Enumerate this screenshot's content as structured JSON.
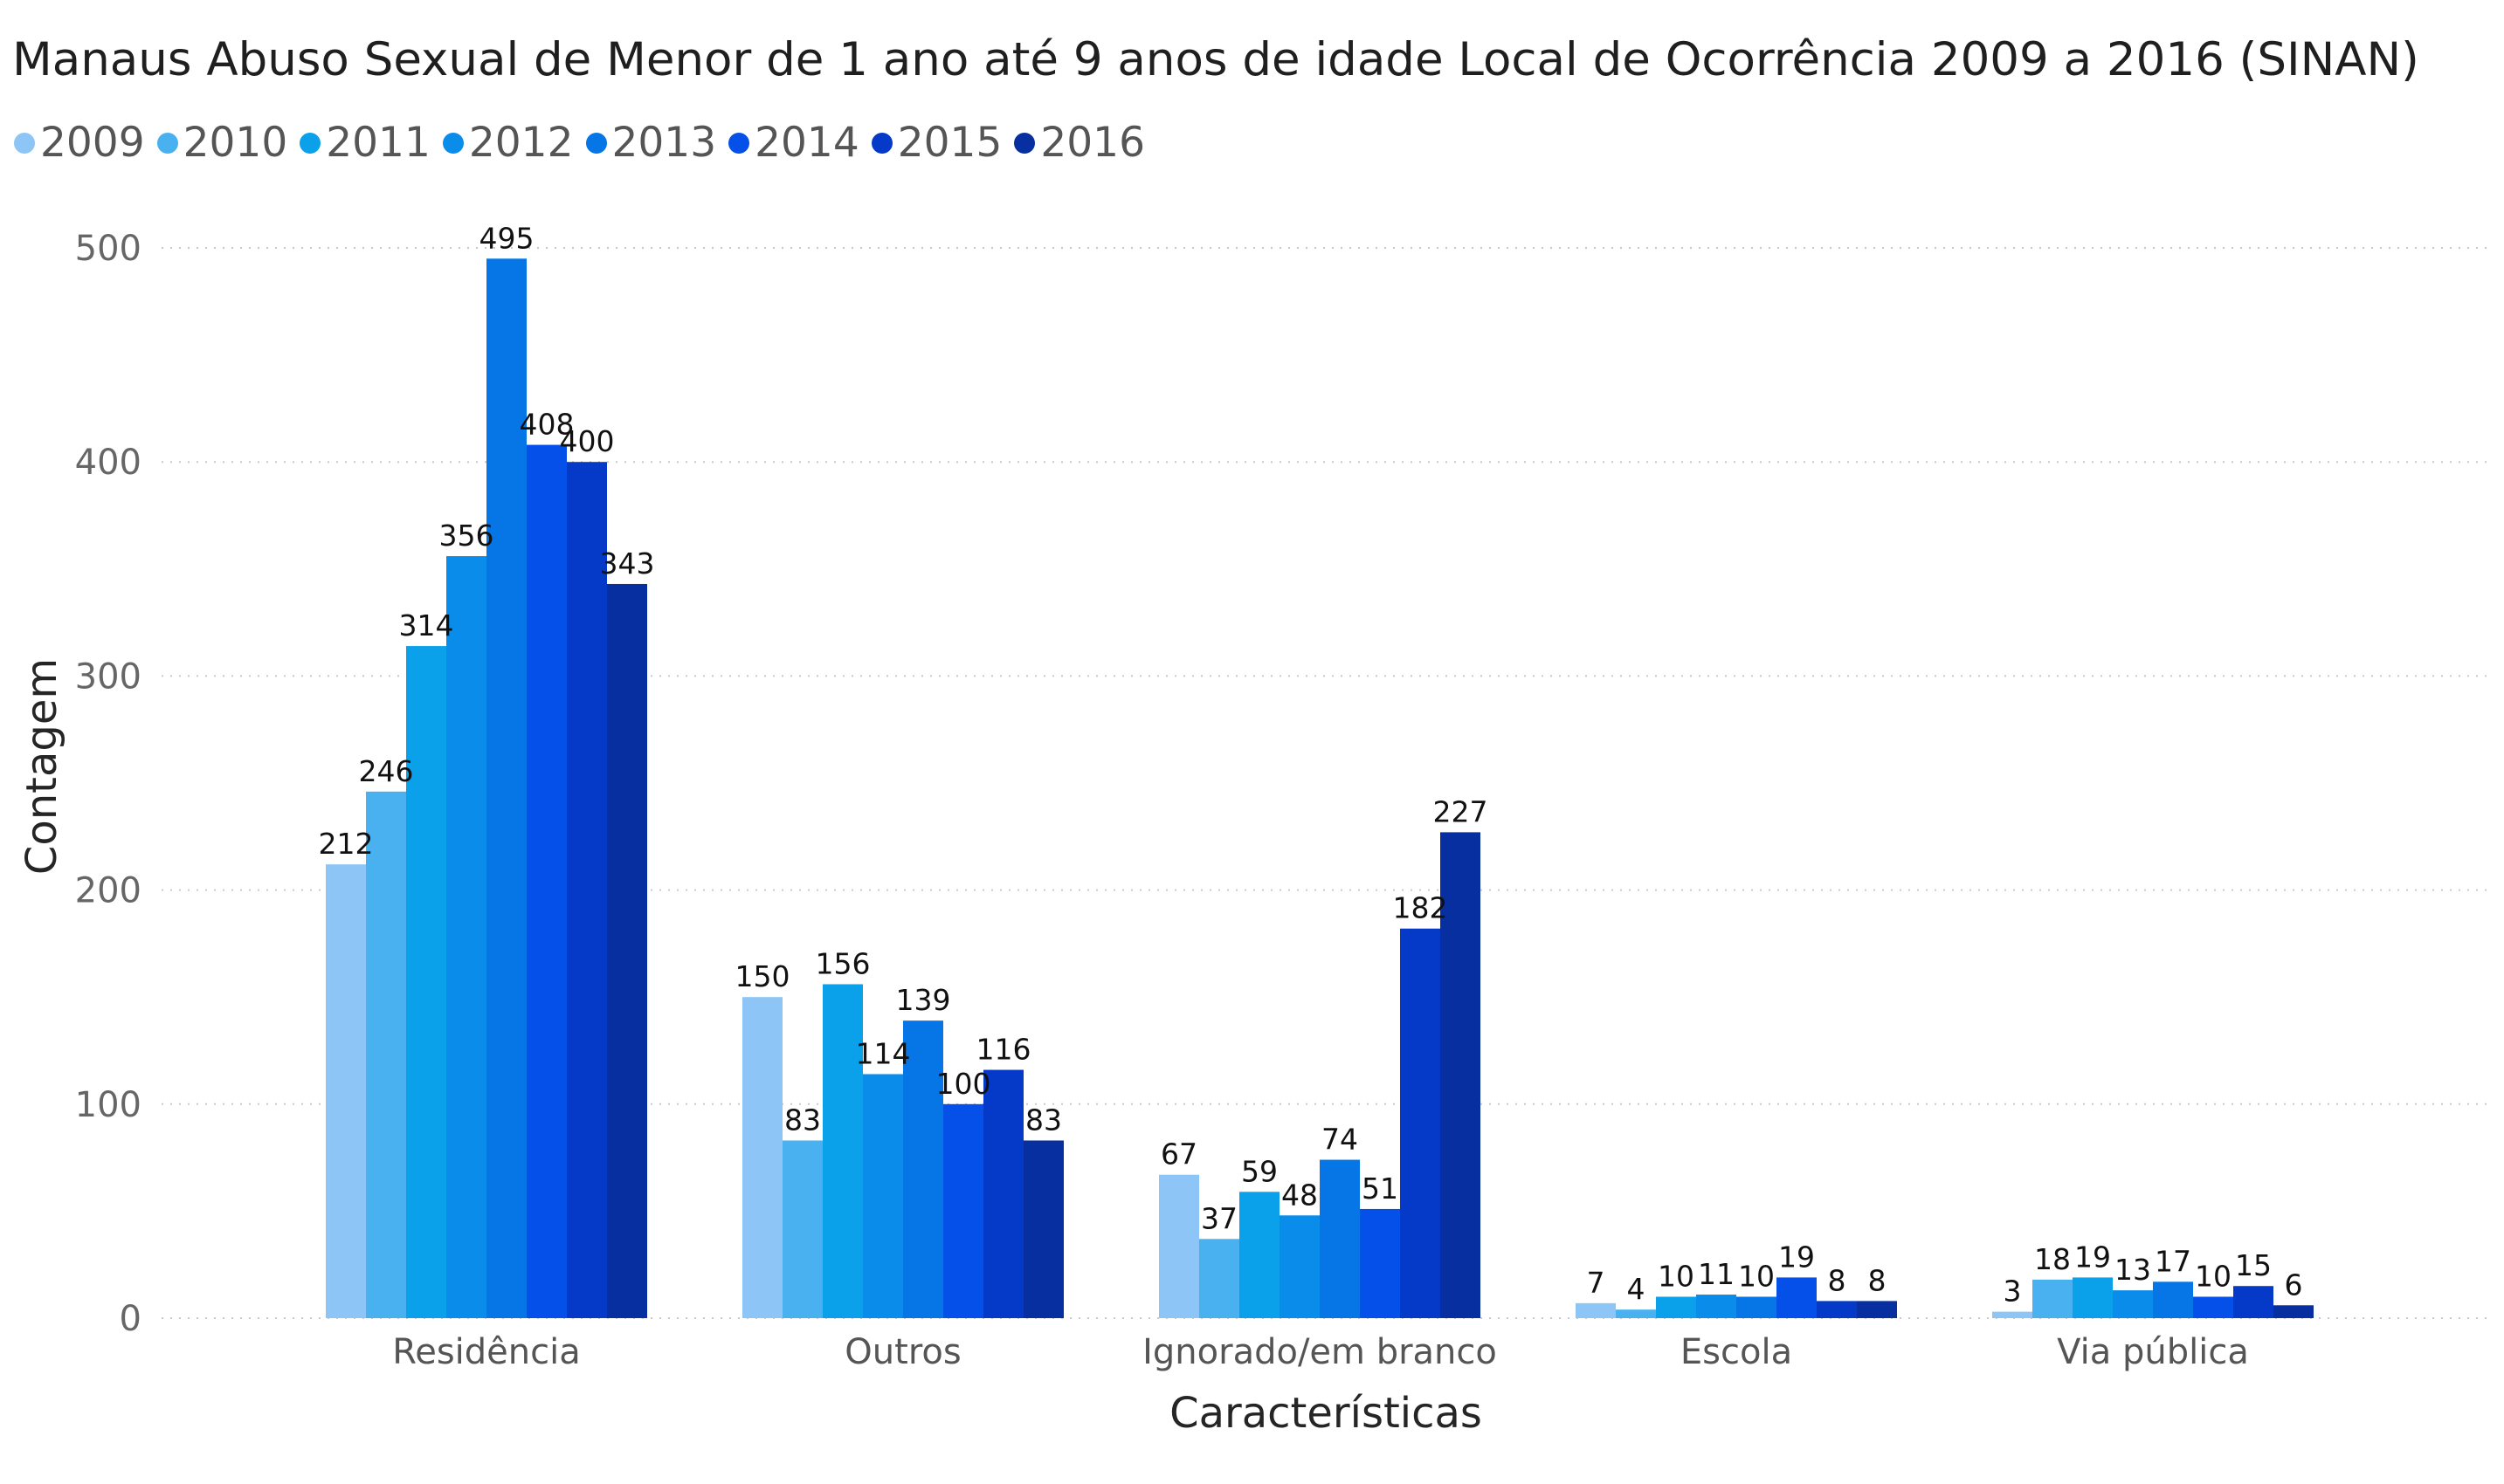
{
  "chart_data": {
    "type": "bar",
    "title": "Manaus Abuso Sexual de Menor de 1 ano até 9 anos de idade Local de Ocorrência 2009 a 2016 (SINAN)",
    "xlabel": "Características",
    "ylabel": "Contagem",
    "ylim": [
      0,
      500
    ],
    "yticks": [
      0,
      100,
      200,
      300,
      400,
      500
    ],
    "grid": true,
    "legend_position": "top-left",
    "categories": [
      "Residência",
      "Outros",
      "Ignorado/em branco",
      "Escola",
      "Via pública"
    ],
    "series": [
      {
        "name": "2009",
        "color": "#8DC6F6",
        "values": [
          212,
          150,
          67,
          7,
          3
        ]
      },
      {
        "name": "2010",
        "color": "#4AB1F0",
        "values": [
          246,
          83,
          37,
          4,
          18
        ]
      },
      {
        "name": "2011",
        "color": "#0AA0EA",
        "values": [
          314,
          156,
          59,
          10,
          19
        ]
      },
      {
        "name": "2012",
        "color": "#098CEA",
        "values": [
          356,
          114,
          48,
          11,
          13
        ]
      },
      {
        "name": "2013",
        "color": "#0676E6",
        "values": [
          495,
          139,
          74,
          10,
          17
        ]
      },
      {
        "name": "2014",
        "color": "#0550E8",
        "values": [
          408,
          100,
          51,
          19,
          10
        ]
      },
      {
        "name": "2015",
        "color": "#0539C8",
        "values": [
          400,
          116,
          182,
          8,
          15
        ]
      },
      {
        "name": "2016",
        "color": "#082FA0",
        "values": [
          343,
          83,
          227,
          8,
          6
        ]
      }
    ]
  }
}
